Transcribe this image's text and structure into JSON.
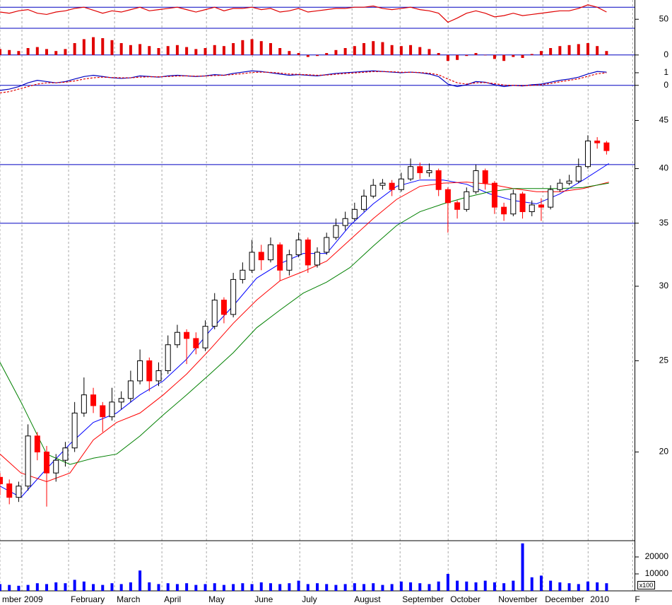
{
  "x": [
    0,
    4,
    8,
    12,
    16,
    20,
    24,
    28,
    32,
    36,
    40,
    44,
    48,
    52,
    56,
    60,
    64,
    68,
    72,
    76,
    80,
    84,
    88,
    92,
    96,
    100,
    104,
    108,
    112,
    116,
    120,
    124,
    128,
    132,
    136,
    140,
    144,
    148,
    152,
    156,
    160,
    164,
    168,
    172,
    176,
    180,
    184,
    188,
    192,
    196,
    200,
    204,
    208,
    212,
    216,
    220,
    224,
    228,
    232,
    236,
    240,
    244,
    248,
    252,
    256,
    260
  ],
  "xlim": [
    0,
    272
  ],
  "xticks": [
    {
      "value": 0,
      "label": "mber"
    },
    {
      "value": 9.4,
      "label": "2009"
    },
    {
      "value": 29.4,
      "label": "February"
    },
    {
      "value": 49.1,
      "label": "March"
    },
    {
      "value": 69.4,
      "label": "April"
    },
    {
      "value": 88.5,
      "label": "May"
    },
    {
      "value": 108.2,
      "label": "June"
    },
    {
      "value": 128.5,
      "label": "July"
    },
    {
      "value": 150.9,
      "label": "August"
    },
    {
      "value": 171.5,
      "label": "September"
    },
    {
      "value": 192.1,
      "label": "October"
    },
    {
      "value": 212.7,
      "label": "November"
    },
    {
      "value": 232.7,
      "label": "December"
    },
    {
      "value": 252.1,
      "label": "2010"
    },
    {
      "value": 271.2,
      "label": "F"
    }
  ],
  "chart_data": [
    {
      "type": "line",
      "ylim": [
        35,
        82
      ],
      "yticks": [
        50
      ],
      "hlines": [
        70
      ],
      "hline_color": "#0000c0",
      "series": [
        {
          "color": "#e00000",
          "values": [
            62,
            60,
            64,
            66,
            60,
            58,
            62,
            64,
            68,
            70,
            65,
            60,
            64,
            62,
            66,
            70,
            64,
            66,
            68,
            70,
            66,
            62,
            66,
            70,
            64,
            68,
            68,
            70,
            66,
            68,
            62,
            64,
            68,
            62,
            64,
            66,
            68,
            68,
            70,
            70,
            72,
            68,
            66,
            68,
            70,
            66,
            64,
            60,
            45,
            52,
            60,
            64,
            60,
            54,
            56,
            60,
            56,
            58,
            60,
            62,
            64,
            64,
            68,
            74,
            70,
            62
          ]
        }
      ]
    },
    {
      "type": "bar",
      "color": "#e00000",
      "ylim": [
        -0.4,
        1.35
      ],
      "yticks": [
        0
      ],
      "hlines": [
        0
      ],
      "hline_color": "#0000c0",
      "values": [
        0.3,
        0.25,
        0.2,
        0.35,
        0.4,
        0.3,
        0.2,
        0.3,
        0.6,
        0.8,
        0.9,
        0.85,
        0.75,
        0.6,
        0.5,
        0.55,
        0.45,
        0.35,
        0.45,
        0.5,
        0.4,
        0.3,
        0.35,
        0.5,
        0.45,
        0.6,
        0.75,
        0.8,
        0.7,
        0.6,
        0.35,
        0.2,
        0.1,
        -0.1,
        -0.05,
        0.1,
        0.25,
        0.35,
        0.45,
        0.6,
        0.7,
        0.65,
        0.5,
        0.45,
        0.5,
        0.4,
        0.3,
        0.1,
        -0.3,
        -0.25,
        -0.05,
        0.1,
        0,
        -0.2,
        -0.3,
        -0.1,
        -0.15,
        0.05,
        0.2,
        0.35,
        0.45,
        0.5,
        0.55,
        0.6,
        0.45,
        0.2
      ]
    },
    {
      "type": "line",
      "ylim": [
        -0.8,
        2.4
      ],
      "yticks": [
        1,
        0
      ],
      "hlines": [
        0
      ],
      "hline_color": "#0000c0",
      "series": [
        {
          "color": "#0000c0",
          "values": [
            -0.4,
            -0.3,
            -0.1,
            0.2,
            0.4,
            0.3,
            0.2,
            0.3,
            0.5,
            0.7,
            0.8,
            0.7,
            0.6,
            0.55,
            0.6,
            0.75,
            0.7,
            0.65,
            0.75,
            0.8,
            0.75,
            0.7,
            0.75,
            0.85,
            0.8,
            0.95,
            1.05,
            1.15,
            1.1,
            1.0,
            0.9,
            0.8,
            0.85,
            0.8,
            0.75,
            0.85,
            0.95,
            1.0,
            1.05,
            1.1,
            1.15,
            1.1,
            1.05,
            1.0,
            1.05,
            1.0,
            0.9,
            0.7,
            0.1,
            -0.1,
            0.05,
            0.3,
            0.25,
            0.05,
            -0.1,
            0,
            -0.05,
            0.05,
            0.1,
            0.25,
            0.4,
            0.5,
            0.65,
            0.9,
            1.1,
            1.05
          ]
        },
        {
          "color": "#e00000",
          "dash": true,
          "values": [
            -0.6,
            -0.5,
            -0.3,
            -0.1,
            0.1,
            0.2,
            0.2,
            0.25,
            0.35,
            0.5,
            0.6,
            0.65,
            0.62,
            0.6,
            0.6,
            0.65,
            0.68,
            0.68,
            0.7,
            0.74,
            0.75,
            0.73,
            0.74,
            0.78,
            0.8,
            0.86,
            0.93,
            1.02,
            1.05,
            1.03,
            0.98,
            0.9,
            0.87,
            0.84,
            0.8,
            0.82,
            0.88,
            0.94,
            0.99,
            1.04,
            1.09,
            1.1,
            1.08,
            1.04,
            1.04,
            1.02,
            0.96,
            0.84,
            0.5,
            0.2,
            0.1,
            0.2,
            0.22,
            0.14,
            0.02,
            0,
            -0.03,
            0,
            0.05,
            0.15,
            0.28,
            0.4,
            0.52,
            0.72,
            0.92,
            1.0
          ]
        }
      ]
    },
    {
      "type": "candlestick",
      "log": true,
      "ylim": [
        16.1,
        49.1
      ],
      "yticks": [
        20,
        25,
        30,
        35,
        40,
        45
      ],
      "hlines": [
        40.4,
        35
      ],
      "hline_color": "#0000c0",
      "up_color": "#ffffff",
      "down_color": "#ff0000",
      "edge_color": "#000000",
      "open": [
        18.8,
        18.5,
        17.9,
        18.4,
        20.8,
        20.0,
        19.0,
        19.6,
        20.2,
        22.0,
        23.0,
        22.4,
        21.8,
        22.6,
        22.8,
        23.8,
        25.0,
        23.8,
        24.4,
        26.0,
        26.8,
        26.4,
        25.8,
        27.2,
        29.0,
        28.0,
        30.5,
        31.2,
        32.6,
        32.0,
        33.2,
        31.2,
        32.4,
        33.6,
        31.6,
        32.6,
        33.8,
        34.8,
        35.4,
        36.2,
        37.4,
        38.4,
        38.6,
        38.0,
        39.0,
        40.2,
        39.6,
        39.8,
        38.0,
        36.8,
        36.2,
        37.8,
        39.8,
        38.6,
        36.4,
        35.8,
        37.6,
        36.0,
        36.6,
        36.4,
        38.0,
        38.6,
        38.8,
        40.2,
        42.8,
        42.6
      ],
      "high": [
        19.0,
        18.7,
        18.6,
        21.4,
        21.0,
        20.3,
        19.9,
        20.5,
        22.6,
        24.0,
        23.4,
        22.6,
        23.4,
        23.2,
        24.4,
        25.7,
        25.2,
        24.9,
        26.6,
        27.3,
        27.0,
        26.8,
        27.6,
        29.5,
        29.2,
        31.0,
        31.8,
        33.6,
        33.2,
        33.8,
        33.4,
        32.8,
        34.2,
        33.8,
        33.0,
        34.2,
        35.4,
        36.0,
        36.8,
        38.0,
        39.0,
        39.0,
        38.9,
        39.6,
        41.0,
        40.6,
        40.5,
        40.0,
        38.2,
        37.0,
        38.2,
        40.4,
        40.0,
        38.8,
        36.8,
        38.0,
        37.8,
        37.0,
        37.2,
        38.4,
        39.0,
        39.4,
        41.0,
        43.4,
        43.2,
        42.8
      ],
      "low": [
        18.0,
        17.6,
        17.7,
        18.2,
        19.6,
        17.5,
        18.6,
        19.3,
        20.0,
        21.8,
        22.0,
        21.0,
        21.6,
        22.2,
        22.6,
        23.6,
        23.2,
        23.5,
        24.2,
        25.8,
        24.8,
        25.4,
        25.6,
        27.0,
        27.4,
        27.8,
        30.2,
        31.0,
        31.2,
        31.8,
        30.4,
        30.8,
        32.2,
        31.0,
        31.4,
        32.4,
        33.6,
        34.4,
        35.2,
        36.0,
        37.2,
        38.0,
        37.4,
        37.8,
        38.8,
        39.0,
        39.2,
        37.4,
        34.2,
        35.4,
        36.0,
        37.6,
        38.0,
        35.8,
        35.2,
        35.6,
        35.4,
        35.6,
        35.2,
        36.2,
        37.8,
        38.4,
        38.6,
        40.0,
        42.0,
        41.4
      ],
      "close": [
        18.5,
        17.9,
        18.4,
        20.8,
        20.0,
        19.0,
        19.6,
        20.2,
        22.0,
        23.0,
        22.4,
        21.8,
        22.6,
        22.8,
        23.8,
        25.0,
        23.8,
        24.4,
        26.0,
        26.8,
        26.4,
        25.8,
        27.2,
        29.0,
        28.0,
        30.5,
        31.2,
        32.6,
        32.0,
        33.2,
        31.2,
        32.4,
        33.6,
        31.6,
        32.6,
        33.8,
        34.8,
        35.4,
        36.2,
        37.4,
        38.4,
        38.6,
        38.0,
        39.0,
        40.2,
        39.6,
        39.8,
        38.0,
        36.8,
        36.2,
        37.8,
        39.8,
        38.6,
        36.4,
        35.8,
        37.6,
        36.0,
        36.6,
        36.4,
        38.0,
        38.6,
        38.8,
        40.2,
        42.8,
        42.6,
        41.8
      ],
      "overlay_x": [
        0,
        9,
        20,
        30,
        40,
        50,
        60,
        70,
        80,
        90,
        100,
        110,
        120,
        130,
        140,
        150,
        160,
        170,
        180,
        190,
        200,
        210,
        220,
        230,
        240,
        250,
        261
      ],
      "overlays": [
        {
          "color": "#0000ff",
          "values": [
            18.4,
            17.9,
            19.2,
            20.4,
            21.5,
            22.0,
            23.0,
            23.8,
            25.1,
            26.9,
            28.6,
            30.6,
            31.7,
            32.5,
            32.5,
            34.8,
            36.7,
            38.3,
            38.9,
            38.9,
            38.5,
            37.6,
            37.0,
            36.7,
            37.6,
            38.9,
            40.5
          ]
        },
        {
          "color": "#ff0000",
          "values": [
            19.9,
            19.0,
            18.6,
            19.0,
            20.6,
            21.5,
            22.0,
            23.0,
            24.2,
            25.7,
            27.4,
            29.0,
            30.4,
            31.1,
            31.9,
            33.6,
            35.4,
            37.1,
            38.3,
            38.6,
            38.7,
            38.5,
            38.1,
            37.8,
            37.8,
            38.1,
            38.7
          ]
        },
        {
          "color": "#008000",
          "values": [
            24.9,
            22.6,
            19.9,
            19.4,
            19.7,
            19.9,
            20.8,
            21.9,
            23.0,
            24.2,
            25.5,
            27.1,
            28.3,
            29.5,
            30.3,
            31.4,
            33.1,
            34.8,
            36.0,
            36.7,
            37.3,
            37.8,
            38.1,
            38.1,
            38.1,
            38.2,
            38.6
          ]
        }
      ]
    },
    {
      "type": "bar",
      "color": "#0000ff",
      "ylim": [
        0,
        30000
      ],
      "yticks": [
        20000,
        10000
      ],
      "unit_label": "x100",
      "values": [
        4000,
        3500,
        3000,
        3500,
        4500,
        4000,
        5000,
        4500,
        6500,
        5500,
        4000,
        3500,
        4500,
        4000,
        5000,
        12000,
        5000,
        4000,
        4500,
        4000,
        4500,
        3500,
        4000,
        4500,
        3500,
        4000,
        4500,
        4000,
        5000,
        4500,
        4000,
        4500,
        6000,
        4000,
        4500,
        4000,
        3500,
        4000,
        4500,
        4000,
        4500,
        3500,
        4000,
        5500,
        5000,
        4500,
        4000,
        5500,
        10000,
        6000,
        5500,
        5000,
        6000,
        5000,
        4500,
        6000,
        28000,
        8000,
        9000,
        6000,
        5000,
        4500,
        4000,
        5500,
        5000,
        4500
      ]
    }
  ]
}
